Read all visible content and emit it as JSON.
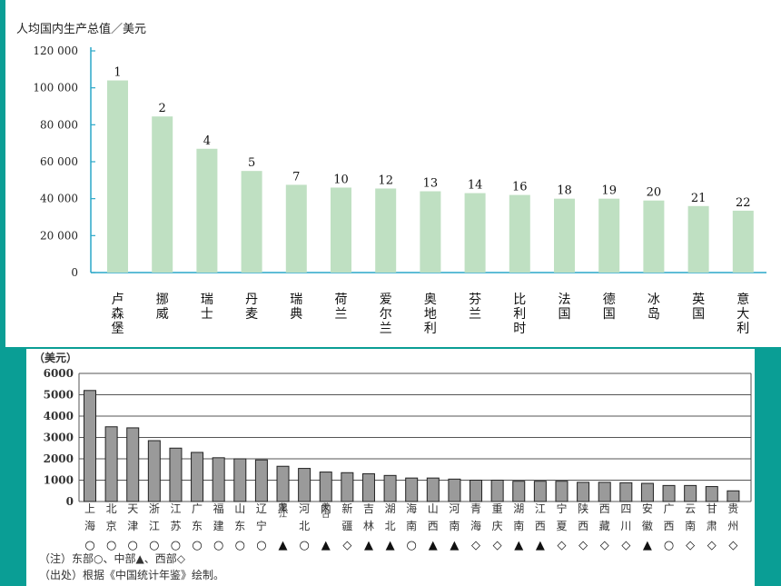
{
  "chart_data": [
    {
      "type": "bar",
      "title": "",
      "ylabel": "人均国内生产总值／美元",
      "xlabel": "",
      "ylim": [
        0,
        120000
      ],
      "yticks": [
        "0",
        "20 000",
        "40 000",
        "60 000",
        "80 000",
        "100 000",
        "120 000"
      ],
      "grid": false,
      "bar_color": "#bfe0c2",
      "categories": [
        "卢森堡",
        "挪威",
        "瑞士",
        "丹麦",
        "瑞典",
        "荷兰",
        "爱尔兰",
        "奥地利",
        "芬兰",
        "比利时",
        "法国",
        "德国",
        "冰岛",
        "英国",
        "意大利"
      ],
      "rank_labels": [
        "1",
        "2",
        "4",
        "5",
        "7",
        "10",
        "12",
        "13",
        "14",
        "16",
        "18",
        "19",
        "20",
        "21",
        "22"
      ],
      "values": [
        104000,
        84500,
        67000,
        55000,
        47500,
        46000,
        45500,
        44000,
        43000,
        42000,
        40000,
        40000,
        39000,
        36000,
        33500
      ]
    },
    {
      "type": "bar",
      "title": "",
      "ylabel": "（美元）",
      "xlabel": "",
      "ylim": [
        0,
        6000
      ],
      "yticks": [
        "0",
        "1000",
        "2000",
        "3000",
        "4000",
        "5000",
        "6000"
      ],
      "grid": true,
      "bar_color": "#9a9a9a",
      "categories": [
        "上海",
        "北京",
        "天津",
        "浙江",
        "江苏",
        "广东",
        "福建",
        "山东",
        "辽宁",
        "黑龙江",
        "河北",
        "内蒙古",
        "新疆",
        "吉林",
        "湖北",
        "海南",
        "山西",
        "河南",
        "青海",
        "重庆",
        "湖南",
        "江西",
        "宁夏",
        "陕西",
        "西藏",
        "四川",
        "安徽",
        "广西",
        "云南",
        "甘肃",
        "贵州"
      ],
      "category_rows": [
        [
          "上",
          "北",
          "天",
          "浙",
          "江",
          "广",
          "福",
          "山",
          "辽",
          "黑",
          "河",
          "内",
          "新",
          "吉",
          "湖",
          "海",
          "山",
          "河",
          "青",
          "重",
          "湖",
          "江",
          "宁",
          "陕",
          "西",
          "四",
          "安",
          "广",
          "云",
          "甘",
          "贵"
        ],
        [
          "海",
          "京",
          "津",
          "江",
          "苏",
          "东",
          "建",
          "东",
          "宁",
          "龙江",
          "北",
          "蒙古",
          "疆",
          "林",
          "北",
          "南",
          "西",
          "南",
          "海",
          "庆",
          "南",
          "西",
          "夏",
          "西",
          "藏",
          "川",
          "徽",
          "西",
          "南",
          "肃",
          "州"
        ]
      ],
      "region_symbols": [
        "○",
        "○",
        "○",
        "○",
        "○",
        "○",
        "○",
        "○",
        "○",
        "▲",
        "○",
        "▲",
        "◇",
        "▲",
        "▲",
        "○",
        "▲",
        "▲",
        "◇",
        "◇",
        "▲",
        "▲",
        "◇",
        "◇",
        "◇",
        "◇",
        "▲",
        "○",
        "◇",
        "◇",
        "◇"
      ],
      "values": [
        5200,
        3500,
        3450,
        2850,
        2500,
        2300,
        2050,
        2000,
        1950,
        1650,
        1550,
        1380,
        1350,
        1300,
        1220,
        1100,
        1100,
        1050,
        1000,
        1000,
        950,
        950,
        950,
        900,
        900,
        880,
        850,
        750,
        750,
        700,
        500
      ]
    }
  ],
  "notes": {
    "legend": "（注）东部○、中部▲、西部◇",
    "source": "（出处）根据《中国统计年鉴》绘制。"
  }
}
